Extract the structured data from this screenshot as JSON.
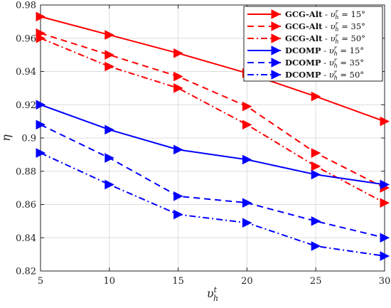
{
  "chart_data": {
    "type": "line",
    "xlabel": "υ",
    "xlabel_sub": "h",
    "xlabel_sup": "t",
    "ylabel": "η",
    "xlim": [
      5,
      30
    ],
    "ylim": [
      0.82,
      0.98
    ],
    "xticks": [
      5,
      10,
      15,
      20,
      25,
      30
    ],
    "yticks": [
      0.82,
      0.84,
      0.86,
      0.88,
      0.9,
      0.92,
      0.94,
      0.96,
      0.98
    ],
    "xtick_labels": [
      "5",
      "10",
      "15",
      "20",
      "25",
      "30"
    ],
    "ytick_labels": [
      "0.82",
      "0.84",
      "0.86",
      "0.88",
      "0.9",
      "0.92",
      "0.94",
      "0.96",
      "0.98"
    ],
    "grid": true,
    "legend_position": "top-right",
    "x": [
      5,
      10,
      15,
      20,
      25,
      30
    ],
    "series": [
      {
        "name": "GCG-Alt - υhr = 15°",
        "method": "GCG-Alt",
        "angle": "15°",
        "color": "#ff0000",
        "dash": "solid",
        "values": [
          0.973,
          0.962,
          0.951,
          0.939,
          0.925,
          0.91
        ]
      },
      {
        "name": "GCG-Alt - υhr = 35°",
        "method": "GCG-Alt",
        "angle": "35°",
        "color": "#ff0000",
        "dash": "dashed",
        "values": [
          0.963,
          0.95,
          0.937,
          0.919,
          0.891,
          0.87
        ]
      },
      {
        "name": "GCG-Alt - υhr = 50°",
        "method": "GCG-Alt",
        "angle": "50°",
        "color": "#ff0000",
        "dash": "dashdot",
        "values": [
          0.96,
          0.943,
          0.93,
          0.908,
          0.883,
          0.861
        ]
      },
      {
        "name": "DCOMP - υhr = 15°",
        "method": "DCOMP",
        "angle": "15°",
        "color": "#0000ff",
        "dash": "solid",
        "values": [
          0.92,
          0.905,
          0.893,
          0.887,
          0.878,
          0.872
        ]
      },
      {
        "name": "DCOMP - υhr = 35°",
        "method": "DCOMP",
        "angle": "35°",
        "color": "#0000ff",
        "dash": "dashed",
        "values": [
          0.908,
          0.888,
          0.865,
          0.861,
          0.85,
          0.84
        ]
      },
      {
        "name": "DCOMP - υhr = 50°",
        "method": "DCOMP",
        "angle": "50°",
        "color": "#0000ff",
        "dash": "dashdot",
        "values": [
          0.891,
          0.872,
          0.854,
          0.849,
          0.835,
          0.829
        ]
      }
    ],
    "legend": {
      "separator": " - ",
      "symbol": "υ",
      "symbol_sub": "h",
      "symbol_sup": "r",
      "equals": " = "
    }
  }
}
